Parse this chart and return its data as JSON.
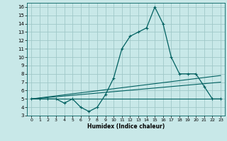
{
  "title": "",
  "xlabel": "Humidex (Indice chaleur)",
  "bg_color": "#c8e8e8",
  "grid_color": "#a0c8c8",
  "line_color": "#006060",
  "xlim": [
    -0.5,
    23.5
  ],
  "ylim": [
    3,
    16.5
  ],
  "xticks": [
    0,
    1,
    2,
    3,
    4,
    5,
    6,
    7,
    8,
    9,
    10,
    11,
    12,
    13,
    14,
    15,
    16,
    17,
    18,
    19,
    20,
    21,
    22,
    23
  ],
  "yticks": [
    3,
    4,
    5,
    6,
    7,
    8,
    9,
    10,
    11,
    12,
    13,
    14,
    15,
    16
  ],
  "main_x": [
    0,
    1,
    2,
    3,
    4,
    5,
    6,
    7,
    8,
    9,
    10,
    11,
    12,
    13,
    14,
    15,
    16,
    17,
    18,
    19,
    20,
    21,
    22,
    23
  ],
  "main_y": [
    5,
    5,
    5,
    5,
    4.5,
    5,
    4,
    3.5,
    4,
    5.5,
    7.5,
    11,
    12.5,
    13,
    13.5,
    16,
    14,
    10,
    8,
    8,
    8,
    6.5,
    5,
    5
  ],
  "line1_x": [
    0,
    23
  ],
  "line1_y": [
    5.0,
    5.0
  ],
  "line2_x": [
    0,
    23
  ],
  "line2_y": [
    5.0,
    7.0
  ],
  "line3_x": [
    0,
    23
  ],
  "line3_y": [
    5.0,
    7.8
  ]
}
